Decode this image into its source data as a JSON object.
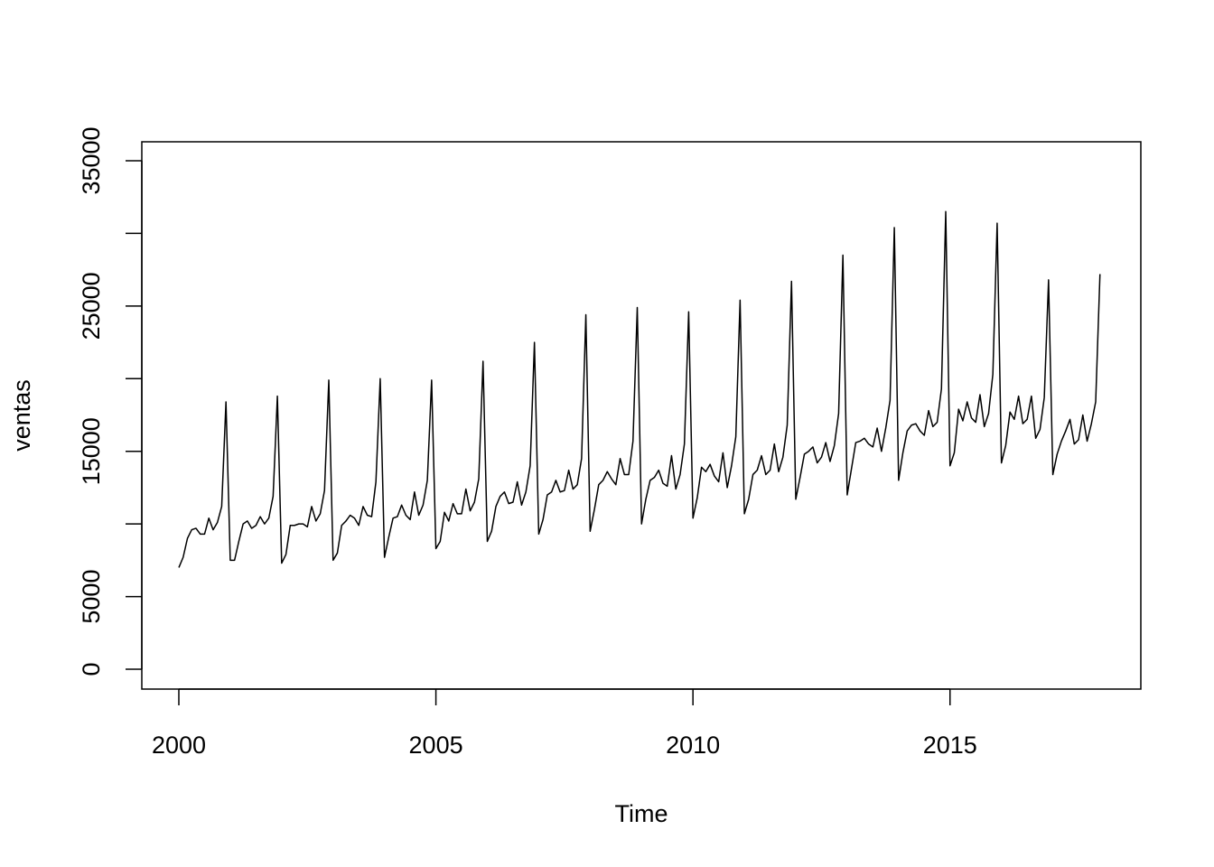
{
  "chart_data": {
    "type": "line",
    "title": "",
    "xlabel": "Time",
    "ylabel": "ventas",
    "xlim": [
      2000,
      2018
    ],
    "ylim": [
      0,
      35000
    ],
    "x_ticks": [
      2000,
      2005,
      2010,
      2015
    ],
    "x_tick_labels": [
      "2000",
      "2005",
      "2010",
      "2015"
    ],
    "y_ticks": [
      0,
      5000,
      10000,
      15000,
      20000,
      25000,
      30000,
      35000
    ],
    "y_tick_labels": [
      "0",
      "5000",
      "",
      "15000",
      "",
      "25000",
      "",
      "35000"
    ],
    "grid": false,
    "legend": "none",
    "x_start": 2000,
    "frequency": 12,
    "line_color": "#000000",
    "series": [
      {
        "values": [
          7000,
          7700,
          9000,
          9600,
          9700,
          9300,
          9300,
          10400,
          9600,
          10100,
          11200,
          18400,
          7500,
          7500,
          8800,
          10000,
          10200,
          9700,
          9900,
          10500,
          10000,
          10400,
          11900,
          18800,
          7300,
          7900,
          9900,
          9900,
          10000,
          10000,
          9800,
          11200,
          10200,
          10700,
          12300,
          19900,
          7500,
          8000,
          9900,
          10200,
          10600,
          10400,
          9900,
          11200,
          10600,
          10500,
          12900,
          20000,
          7700,
          9100,
          10400,
          10500,
          11300,
          10600,
          10300,
          12200,
          10600,
          11300,
          13000,
          19900,
          8300,
          8800,
          10800,
          10200,
          11400,
          10700,
          10700,
          12400,
          10900,
          11500,
          13100,
          21200,
          8800,
          9500,
          11200,
          11900,
          12200,
          11400,
          11500,
          12900,
          11300,
          12200,
          14000,
          22500,
          9300,
          10300,
          12000,
          12200,
          13000,
          12200,
          12300,
          13700,
          12400,
          12700,
          14500,
          24400,
          9500,
          11000,
          12700,
          13000,
          13600,
          13100,
          12700,
          14500,
          13400,
          13400,
          15700,
          24900,
          10000,
          11700,
          13000,
          13200,
          13700,
          12800,
          12600,
          14700,
          12400,
          13400,
          15500,
          24600,
          10400,
          11800,
          13900,
          13600,
          14100,
          13300,
          12900,
          14900,
          12500,
          14000,
          16000,
          25400,
          10700,
          11700,
          13400,
          13700,
          14700,
          13400,
          13700,
          15500,
          13600,
          14600,
          16800,
          26700,
          11700,
          13200,
          14800,
          15000,
          15300,
          14200,
          14600,
          15600,
          14300,
          15400,
          17600,
          28500,
          12000,
          13800,
          15600,
          15700,
          15900,
          15500,
          15300,
          16600,
          15000,
          16600,
          18500,
          30400,
          13000,
          14900,
          16400,
          16800,
          16900,
          16400,
          16100,
          17800,
          16700,
          17000,
          19300,
          31500,
          14000,
          14900,
          17900,
          17100,
          18400,
          17300,
          17000,
          18900,
          16700,
          17600,
          20300,
          30700,
          14200,
          15400,
          17700,
          17200,
          18800,
          16900,
          17200,
          18800,
          15900,
          16500,
          18700,
          26800,
          13400,
          14800,
          15700,
          16400,
          17200,
          15500,
          15800,
          17500,
          15700,
          16900,
          18400,
          27200
        ]
      }
    ]
  }
}
